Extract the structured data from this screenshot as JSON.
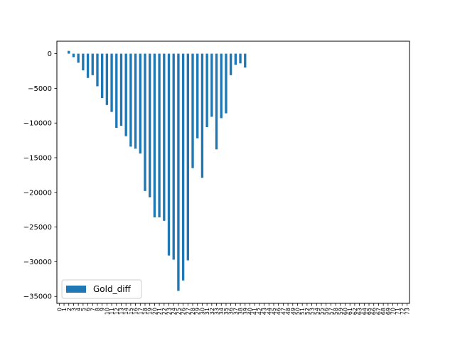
{
  "chart_data": {
    "type": "bar",
    "title": "",
    "xlabel": "",
    "ylabel": "",
    "ylim": [
      -36000,
      1800
    ],
    "yticks": [
      0,
      -5000,
      -10000,
      -15000,
      -20000,
      -25000,
      -30000,
      -35000
    ],
    "categories": [
      "0",
      "1",
      "2",
      "3",
      "4",
      "5",
      "6",
      "7",
      "8",
      "9",
      "10",
      "11",
      "12",
      "13",
      "14",
      "15",
      "16",
      "17",
      "18",
      "19",
      "20",
      "21",
      "22",
      "23",
      "24",
      "25",
      "26",
      "27",
      "28",
      "29",
      "30",
      "31",
      "32",
      "33",
      "34",
      "35",
      "36",
      "37",
      "38",
      "39",
      "40",
      "41",
      "42",
      "43",
      "44",
      "45",
      "46",
      "47",
      "48",
      "49",
      "50",
      "51",
      "52",
      "53",
      "54",
      "55",
      "56",
      "57",
      "58",
      "59",
      "60",
      "61",
      "62",
      "63",
      "64",
      "65",
      "66",
      "67",
      "68",
      "69",
      "70",
      "71",
      "72",
      "73"
    ],
    "series": [
      {
        "name": "Gold_diff",
        "color": "#1f77b4",
        "values": [
          0,
          0,
          400,
          -500,
          -1300,
          -2400,
          -3500,
          -3100,
          -4700,
          -6400,
          -7400,
          -8400,
          -10700,
          -10400,
          -11900,
          -13400,
          -13700,
          -14400,
          -19800,
          -20700,
          -23600,
          -23600,
          -24100,
          -29100,
          -29700,
          -34200,
          -32700,
          -29800,
          -16500,
          -12200,
          -17900,
          -10600,
          -9100,
          -13800,
          -9300,
          -8600,
          -3100,
          -1600,
          -1400,
          -2000,
          0,
          0,
          0,
          0,
          0,
          0,
          0,
          0,
          0,
          0,
          0,
          0,
          0,
          0,
          0,
          0,
          0,
          0,
          0,
          0,
          0,
          0,
          0,
          0,
          0,
          0,
          0,
          0,
          0,
          0,
          0,
          0,
          0,
          0
        ]
      }
    ],
    "legend": {
      "position": "lower-left",
      "label": "Gold_diff"
    },
    "grid": false
  }
}
